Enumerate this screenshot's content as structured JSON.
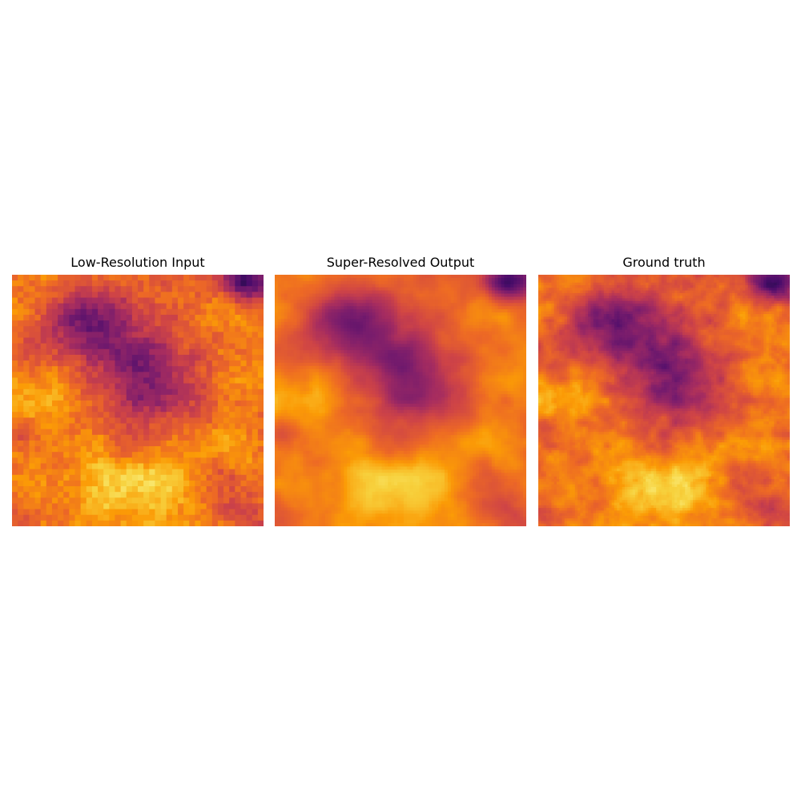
{
  "figure": {
    "panels": [
      {
        "title": "Low-Resolution Input",
        "style": "blocky"
      },
      {
        "title": "Super-Resolved Output",
        "style": "smooth"
      },
      {
        "title": "Ground truth",
        "style": "detailed"
      }
    ],
    "colormap": {
      "name": "inferno",
      "stops": [
        "#000004",
        "#1b0c41",
        "#4a0c6b",
        "#781c6d",
        "#a52c60",
        "#cf4446",
        "#ed6925",
        "#fb9b06",
        "#f7d13d",
        "#fcffa4"
      ]
    }
  }
}
